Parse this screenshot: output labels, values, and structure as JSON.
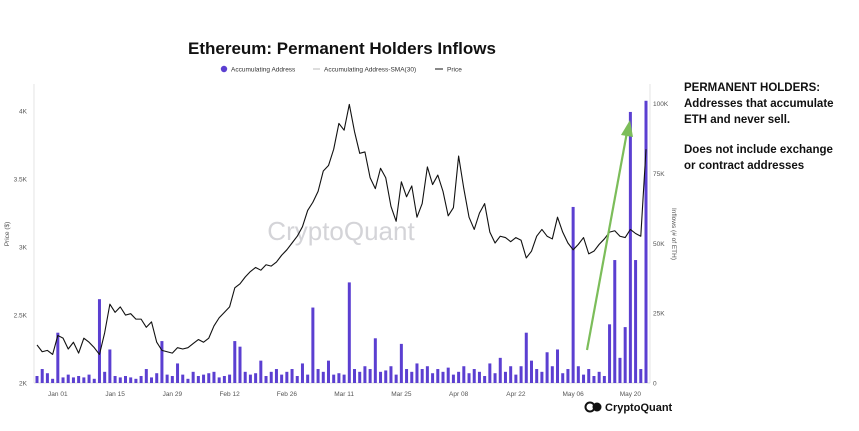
{
  "chart_data": {
    "type": "bar",
    "title": "Ethereum: Permanent Holders Inflows",
    "watermark": "CryptoQuant",
    "brand": "CryptoQuant",
    "legend": [
      {
        "name": "Accumulating Address",
        "color": "#5b3fd1",
        "marker": "dot"
      },
      {
        "name": "Accumulating Address-SMA(30)",
        "color": "#bbbbbb",
        "marker": "line"
      },
      {
        "name": "Price",
        "color": "#111111",
        "marker": "line"
      }
    ],
    "ylabel_left": "Price ($)",
    "ylabel_right": "Inflows (# of ETH)",
    "y_left_range": [
      2000,
      4200
    ],
    "y_left_ticks": [
      {
        "value": 2000,
        "label": "2K"
      },
      {
        "value": 2500,
        "label": "2.5K"
      },
      {
        "value": 3000,
        "label": "3K"
      },
      {
        "value": 3500,
        "label": "3.5K"
      },
      {
        "value": 4000,
        "label": "4K"
      }
    ],
    "y_right_range": [
      0,
      107000
    ],
    "y_right_ticks": [
      {
        "value": 0,
        "label": "0"
      },
      {
        "value": 25000,
        "label": "25K"
      },
      {
        "value": 50000,
        "label": "50K"
      },
      {
        "value": 75000,
        "label": "75K"
      },
      {
        "value": 100000,
        "label": "100K"
      }
    ],
    "x_ticks": [
      {
        "index": 4,
        "label": "Jan 01"
      },
      {
        "index": 15,
        "label": "Jan 15"
      },
      {
        "index": 26,
        "label": "Jan 29"
      },
      {
        "index": 37,
        "label": "Feb 12"
      },
      {
        "index": 48,
        "label": "Feb 26"
      },
      {
        "index": 59,
        "label": "Mar 11"
      },
      {
        "index": 70,
        "label": "Mar 25"
      },
      {
        "index": 81,
        "label": "Apr 08"
      },
      {
        "index": 92,
        "label": "Apr 22"
      },
      {
        "index": 103,
        "label": "May 06"
      },
      {
        "index": 114,
        "label": "May 20"
      }
    ],
    "num_points": 118,
    "price": [
      2280,
      2230,
      2240,
      2210,
      2350,
      2330,
      2250,
      2300,
      2220,
      2330,
      2300,
      2260,
      2210,
      2370,
      2580,
      2520,
      2560,
      2500,
      2510,
      2470,
      2470,
      2410,
      2450,
      2300,
      2240,
      2230,
      2220,
      2260,
      2250,
      2260,
      2290,
      2320,
      2300,
      2330,
      2420,
      2480,
      2520,
      2560,
      2700,
      2730,
      2780,
      2820,
      2850,
      2830,
      2870,
      2860,
      2890,
      2940,
      2980,
      3030,
      3080,
      3150,
      3270,
      3330,
      3410,
      3560,
      3600,
      3720,
      3910,
      3860,
      4050,
      3850,
      3690,
      3700,
      3510,
      3430,
      3580,
      3510,
      3300,
      3190,
      3480,
      3370,
      3450,
      3220,
      3320,
      3590,
      3460,
      3530,
      3410,
      3230,
      3290,
      3670,
      3430,
      3220,
      3130,
      3250,
      3320,
      3110,
      3030,
      3080,
      3070,
      3040,
      3070,
      3050,
      2920,
      2970,
      3080,
      3130,
      3080,
      3060,
      3220,
      3110,
      3030,
      2980,
      3020,
      3070,
      2950,
      2970,
      3020,
      3060,
      3110,
      3120,
      3080,
      3070,
      3130,
      3100,
      3080,
      3720
    ],
    "inflows": [
      2500,
      5000,
      3500,
      1500,
      18000,
      2000,
      3000,
      2000,
      2500,
      2000,
      3000,
      1500,
      30000,
      4000,
      12000,
      2500,
      2000,
      2500,
      2000,
      1500,
      2500,
      5000,
      2000,
      3500,
      15000,
      3000,
      2500,
      7000,
      3000,
      1500,
      4000,
      2500,
      3000,
      3500,
      4000,
      2000,
      2500,
      3000,
      15000,
      13000,
      4000,
      3000,
      3500,
      8000,
      2500,
      4000,
      5000,
      3000,
      4000,
      5000,
      2500,
      7000,
      3000,
      27000,
      5000,
      4000,
      8000,
      3000,
      3500,
      3000,
      36000,
      5000,
      4000,
      6000,
      5000,
      16000,
      4000,
      4500,
      6000,
      3000,
      14000,
      5000,
      4000,
      7000,
      5000,
      6000,
      3500,
      5000,
      4000,
      5500,
      3000,
      4000,
      6000,
      3500,
      5000,
      4000,
      2500,
      7000,
      3500,
      9000,
      4000,
      6000,
      3000,
      6000,
      18000,
      8000,
      5000,
      4000,
      11000,
      6000,
      12000,
      3500,
      5000,
      63000,
      6000,
      3000,
      5000,
      2500,
      4000,
      2500,
      21000,
      44000,
      9000,
      20000,
      97000,
      44000,
      5000,
      101000
    ]
  },
  "side_note": {
    "line1": "PERMANENT HOLDERS:",
    "line2": "Addresses that accumulate",
    "line3": "ETH and never sell.",
    "line4": "Does not include exchange",
    "line5": "or contract addresses"
  }
}
